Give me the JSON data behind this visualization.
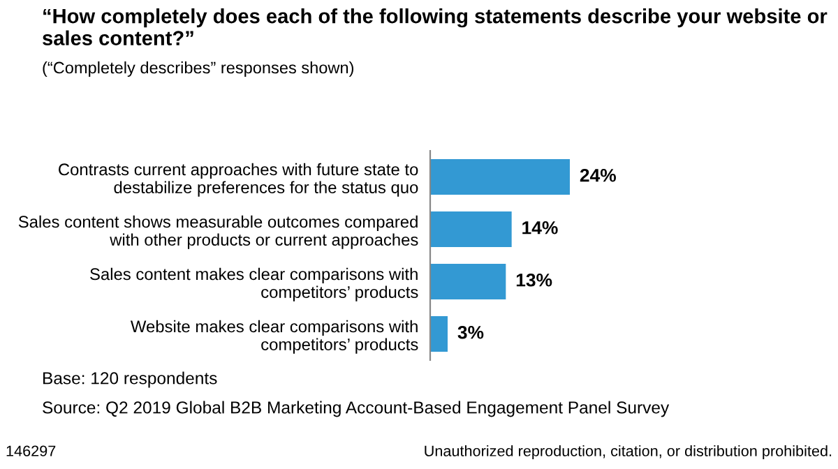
{
  "chart_data": {
    "type": "bar",
    "orientation": "horizontal",
    "title": "“How completely does each of the following statements describe your website or\nsales content?”",
    "subtitle": "(“Completely describes” responses shown)",
    "categories": [
      "Contrasts current approaches with future state to\ndestabilize preferences for the status quo",
      "Sales content shows measurable outcomes compared\nwith other products or current approaches",
      "Sales content makes clear comparisons with\ncompetitors’ products",
      "Website makes clear comparisons with\ncompetitors’ products"
    ],
    "values": [
      24,
      14,
      13,
      3
    ],
    "color": "#3399d3",
    "value_labels": [
      "24%",
      "14%",
      "13%",
      "3%"
    ],
    "grid": false,
    "legend": false,
    "annotations": [
      "Base: 120 respondents",
      "Source: Q2 2019 Global B2B Marketing Account-Based Engagement Panel Survey",
      "146297",
      "Unauthorized reproduction, citation, or distribution prohibited."
    ]
  }
}
